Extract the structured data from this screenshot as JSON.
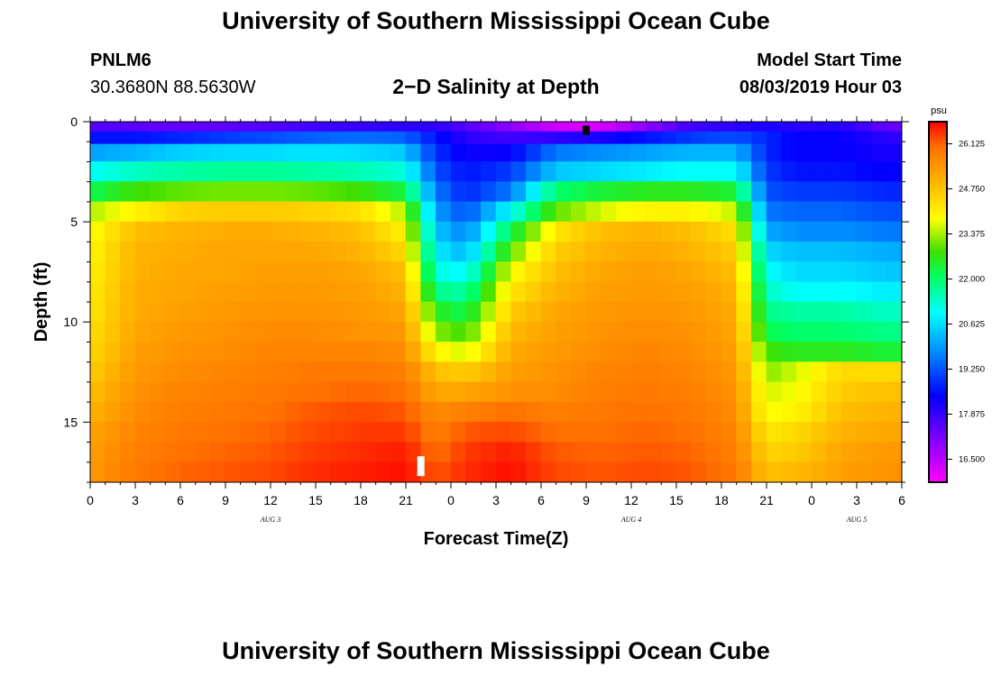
{
  "header": {
    "title": "University of Southern Mississippi Ocean Cube",
    "station_id": "PNLM6",
    "coordinates": "30.3680N 88.5630W",
    "subtitle": "2−D Salinity at Depth",
    "model_start_label": "Model Start Time",
    "model_start_value": "08/03/2019 Hour 03"
  },
  "footer": {
    "title": "University of Southern Mississippi Ocean Cube"
  },
  "chart_data": {
    "type": "heatmap",
    "title": "2−D Salinity at Depth",
    "xlabel": "Forecast Time(Z)",
    "ylabel": "Depth (ft)",
    "x_range_hours": [
      0,
      54
    ],
    "x_tick_labels": [
      "0",
      "3",
      "6",
      "9",
      "12",
      "15",
      "18",
      "21",
      "0",
      "3",
      "6",
      "9",
      "12",
      "15",
      "18",
      "21",
      "0",
      "3",
      "6"
    ],
    "date_labels": [
      {
        "label": "AUG 3",
        "hour": 12
      },
      {
        "label": "AUG 4",
        "hour": 36
      },
      {
        "label": "AUG 5",
        "hour": 51
      }
    ],
    "y_range_ft": [
      0,
      18
    ],
    "y_tick_labels": [
      "0",
      "5",
      "10",
      "15"
    ],
    "y_ticks": [
      0,
      5,
      10,
      15
    ],
    "colorbar": {
      "unit": "psu",
      "min": 15.8,
      "max": 26.8,
      "tick_labels": [
        "26.125",
        "24.750",
        "23.375",
        "22.000",
        "20.625",
        "19.250",
        "17.875",
        "16.500"
      ],
      "ticks": [
        26.125,
        24.75,
        23.375,
        22.0,
        20.625,
        19.25,
        17.875,
        16.5
      ]
    },
    "current_time_markers": [
      {
        "hour": 22,
        "depth_ft": 17.2,
        "color": "#ffffff"
      },
      {
        "hour": 33,
        "depth_ft": 0.2,
        "color": "#000000"
      }
    ],
    "salinity_profile": {
      "description": "Approximate salinity (psu) by forecast hour (columns) and depth (rows)",
      "depth_rows_ft": [
        0.25,
        0.75,
        1.5,
        2.5,
        3.5,
        4.5,
        5.5,
        6.5,
        7.5,
        8.5,
        9.5,
        10.5,
        11.5,
        12.5,
        13.5,
        14.5,
        15.5,
        16.5,
        17.5
      ],
      "hours": [
        0,
        3,
        6,
        9,
        12,
        15,
        18,
        21,
        23,
        25,
        28,
        31,
        34,
        37,
        40,
        43,
        45,
        47,
        50,
        53
      ],
      "values": [
        [
          17.6,
          17.5,
          17.4,
          17.5,
          17.6,
          17.8,
          17.9,
          18.0,
          18.0,
          17.6,
          17.0,
          16.3,
          16.2,
          17.0,
          17.8,
          18.0,
          18.2,
          18.0,
          18.1,
          17.4
        ],
        [
          18.6,
          18.6,
          18.8,
          19.0,
          19.2,
          19.4,
          19.5,
          19.4,
          18.6,
          18.0,
          17.8,
          18.0,
          18.2,
          18.6,
          19.0,
          19.2,
          18.8,
          18.4,
          18.4,
          18.0
        ],
        [
          20.0,
          20.2,
          20.5,
          20.6,
          20.6,
          20.7,
          20.6,
          20.4,
          18.9,
          18.3,
          18.4,
          19.6,
          19.8,
          20.0,
          20.2,
          20.2,
          18.8,
          18.4,
          18.4,
          18.2
        ],
        [
          21.0,
          21.4,
          21.6,
          21.7,
          21.7,
          21.6,
          21.5,
          21.2,
          19.2,
          18.6,
          19.0,
          20.4,
          20.6,
          20.8,
          21.0,
          21.0,
          19.0,
          18.6,
          18.6,
          18.4
        ],
        [
          22.2,
          22.8,
          23.0,
          23.1,
          23.1,
          23.0,
          22.8,
          22.3,
          19.6,
          18.8,
          19.6,
          22.0,
          22.4,
          22.6,
          22.6,
          22.4,
          19.2,
          19.0,
          19.0,
          18.8
        ],
        [
          23.4,
          24.0,
          24.5,
          24.6,
          24.6,
          24.5,
          24.3,
          23.4,
          20.0,
          19.2,
          21.0,
          23.0,
          23.6,
          24.0,
          24.0,
          23.5,
          19.6,
          19.4,
          19.4,
          19.2
        ],
        [
          23.8,
          24.8,
          25.0,
          25.1,
          25.1,
          25.0,
          24.8,
          24.0,
          20.4,
          19.7,
          22.2,
          24.2,
          24.8,
          25.0,
          24.8,
          24.3,
          20.1,
          19.8,
          19.8,
          19.6
        ],
        [
          23.9,
          25.0,
          25.1,
          25.2,
          25.2,
          25.2,
          25.0,
          24.4,
          20.8,
          20.2,
          23.0,
          24.6,
          25.0,
          25.2,
          25.0,
          24.6,
          20.6,
          20.3,
          20.3,
          20.1
        ],
        [
          24.0,
          25.0,
          25.2,
          25.2,
          25.3,
          25.3,
          25.2,
          24.8,
          21.2,
          20.9,
          23.8,
          24.8,
          25.2,
          25.3,
          25.2,
          24.8,
          21.0,
          20.6,
          20.6,
          20.4
        ],
        [
          24.1,
          25.1,
          25.2,
          25.3,
          25.4,
          25.4,
          25.3,
          25.0,
          21.8,
          21.6,
          24.2,
          25.0,
          25.3,
          25.4,
          25.3,
          25.0,
          21.4,
          21.0,
          21.0,
          20.8
        ],
        [
          24.2,
          25.1,
          25.3,
          25.4,
          25.5,
          25.5,
          25.4,
          25.2,
          22.6,
          22.2,
          24.6,
          25.2,
          25.4,
          25.5,
          25.4,
          25.1,
          21.8,
          21.6,
          21.6,
          21.4
        ],
        [
          24.3,
          25.2,
          25.4,
          25.5,
          25.6,
          25.6,
          25.5,
          25.4,
          23.2,
          22.8,
          24.9,
          25.3,
          25.5,
          25.6,
          25.5,
          25.2,
          22.2,
          22.0,
          22.0,
          21.8
        ],
        [
          24.4,
          25.3,
          25.5,
          25.6,
          25.7,
          25.7,
          25.7,
          25.6,
          24.0,
          23.6,
          25.1,
          25.4,
          25.6,
          25.7,
          25.6,
          25.3,
          22.8,
          22.6,
          22.6,
          22.4
        ],
        [
          24.6,
          25.4,
          25.6,
          25.7,
          25.8,
          25.9,
          25.9,
          25.8,
          24.8,
          24.6,
          25.3,
          25.5,
          25.7,
          25.8,
          25.7,
          25.4,
          23.2,
          23.6,
          24.4,
          24.4
        ],
        [
          24.8,
          25.5,
          25.7,
          25.8,
          25.9,
          26.0,
          26.1,
          26.0,
          25.2,
          25.2,
          25.5,
          25.6,
          25.8,
          25.9,
          25.8,
          25.5,
          23.6,
          23.8,
          24.6,
          24.8
        ],
        [
          25.0,
          25.6,
          25.8,
          25.9,
          26.0,
          26.2,
          26.3,
          26.2,
          25.6,
          25.8,
          26.0,
          25.8,
          25.9,
          26.0,
          25.9,
          25.6,
          23.8,
          24.0,
          24.8,
          25.0
        ],
        [
          25.2,
          25.7,
          25.9,
          26.0,
          26.1,
          26.3,
          26.4,
          26.4,
          25.8,
          26.2,
          26.3,
          26.0,
          26.0,
          26.1,
          26.0,
          25.7,
          24.2,
          24.4,
          25.0,
          25.2
        ],
        [
          25.3,
          25.8,
          26.0,
          26.1,
          26.2,
          26.4,
          26.5,
          26.6,
          26.0,
          26.4,
          26.6,
          26.2,
          26.1,
          26.2,
          26.1,
          25.8,
          24.5,
          24.6,
          25.2,
          25.4
        ],
        [
          25.4,
          25.9,
          26.1,
          26.2,
          26.3,
          26.5,
          26.6,
          26.7,
          26.2,
          26.5,
          26.7,
          26.3,
          26.2,
          26.3,
          26.2,
          25.9,
          24.8,
          24.9,
          25.3,
          25.5
        ]
      ]
    }
  }
}
